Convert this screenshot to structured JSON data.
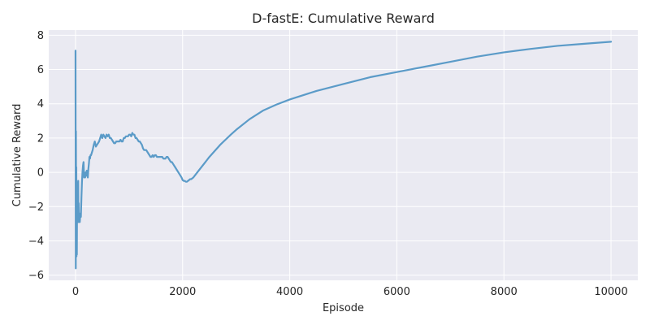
{
  "chart_data": {
    "type": "line",
    "title": "D-fastE: Cumulative Reward",
    "xlabel": "Episode",
    "ylabel": "Cumulative Reward",
    "xlim": [
      -500,
      10500
    ],
    "ylim": [
      -6.3,
      8.3
    ],
    "xticks": [
      0,
      2000,
      4000,
      6000,
      8000,
      10000
    ],
    "yticks": [
      -6,
      -4,
      -2,
      0,
      2,
      4,
      6,
      8
    ],
    "grid": true,
    "legend": "none",
    "colors": {
      "background": "#eaeaf2",
      "grid": "#ffffff",
      "line": "#5b9bc8"
    },
    "series": [
      {
        "x": [
          0,
          2,
          5,
          8,
          12,
          15,
          18,
          22,
          25,
          28,
          32,
          38,
          45,
          50,
          55,
          60,
          65,
          70,
          80,
          90,
          100,
          110,
          120,
          130,
          140,
          150,
          160,
          170,
          180,
          190,
          200,
          210,
          220,
          230,
          240,
          250,
          260,
          270,
          280,
          290,
          300,
          320,
          340,
          360,
          380,
          400,
          420,
          440,
          460,
          480,
          500,
          520,
          540,
          560,
          580,
          600,
          620,
          640,
          660,
          680,
          700,
          720,
          740,
          760,
          780,
          800,
          820,
          840,
          860,
          880,
          900,
          920,
          940,
          960,
          980,
          1000,
          1020,
          1040,
          1060,
          1080,
          1100,
          1120,
          1140,
          1160,
          1180,
          1200,
          1220,
          1240,
          1260,
          1280,
          1300,
          1320,
          1340,
          1360,
          1380,
          1400,
          1420,
          1440,
          1460,
          1480,
          1500,
          1520,
          1540,
          1560,
          1580,
          1600,
          1620,
          1640,
          1660,
          1680,
          1700,
          1720,
          1740,
          1760,
          1780,
          1800,
          1820,
          1840,
          1860,
          1880,
          1900,
          1920,
          1940,
          1960,
          1980,
          2000,
          2020,
          2040,
          2060,
          2080,
          2100,
          2120,
          2140,
          2160,
          2180,
          2200,
          2250,
          2300,
          2400,
          2500,
          2600,
          2700,
          2800,
          2900,
          3000,
          3250,
          3500,
          3750,
          4000,
          4500,
          5000,
          5500,
          6000,
          6500,
          7000,
          7500,
          8000,
          8500,
          9000,
          9500,
          10000
        ],
        "y": [
          7.1,
          2.0,
          -5.6,
          2.4,
          -4.0,
          0.3,
          -4.9,
          -2.0,
          -4.8,
          -2.5,
          -0.6,
          -1.4,
          -2.7,
          -0.5,
          -2.9,
          -1.8,
          -2.9,
          -2.4,
          -2.9,
          -2.4,
          -2.6,
          -1.5,
          -0.6,
          0.0,
          0.4,
          0.6,
          -0.3,
          -0.1,
          -0.3,
          0.0,
          -0.2,
          0.1,
          -0.1,
          -0.3,
          0.2,
          0.5,
          0.9,
          0.8,
          1.0,
          1.0,
          1.1,
          1.3,
          1.6,
          1.8,
          1.5,
          1.6,
          1.7,
          1.8,
          2.0,
          2.2,
          2.0,
          2.2,
          2.1,
          2.0,
          2.2,
          2.1,
          2.2,
          2.0,
          2.0,
          1.9,
          1.8,
          1.7,
          1.7,
          1.8,
          1.8,
          1.8,
          1.8,
          1.9,
          1.8,
          1.8,
          2.0,
          2.0,
          2.1,
          2.1,
          2.1,
          2.2,
          2.2,
          2.1,
          2.3,
          2.2,
          2.2,
          2.0,
          2.0,
          1.9,
          1.8,
          1.8,
          1.7,
          1.6,
          1.4,
          1.3,
          1.3,
          1.3,
          1.2,
          1.1,
          1.0,
          0.9,
          0.9,
          1.0,
          0.9,
          1.0,
          1.0,
          0.9,
          0.9,
          0.9,
          0.9,
          0.9,
          0.9,
          0.8,
          0.8,
          0.8,
          0.9,
          0.9,
          0.8,
          0.7,
          0.6,
          0.6,
          0.5,
          0.4,
          0.3,
          0.2,
          0.1,
          0.0,
          -0.1,
          -0.2,
          -0.3,
          -0.45,
          -0.5,
          -0.5,
          -0.55,
          -0.55,
          -0.5,
          -0.45,
          -0.4,
          -0.4,
          -0.35,
          -0.3,
          -0.1,
          0.1,
          0.5,
          0.9,
          1.25,
          1.6,
          1.9,
          2.2,
          2.48,
          3.1,
          3.6,
          3.95,
          4.25,
          4.75,
          5.15,
          5.55,
          5.85,
          6.15,
          6.45,
          6.75,
          7.0,
          7.2,
          7.38,
          7.5,
          7.62
        ]
      }
    ]
  }
}
